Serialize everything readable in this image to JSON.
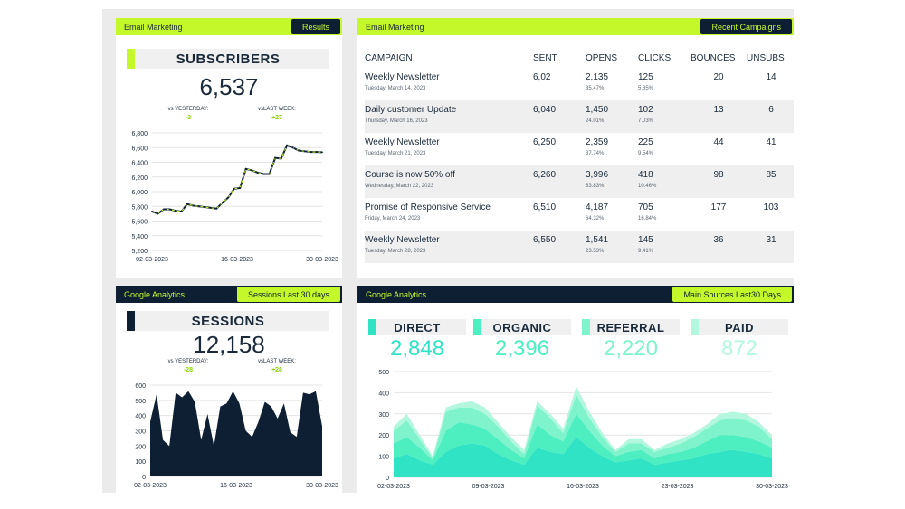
{
  "colors": {
    "accent": "#c5f82a",
    "dark": "#0e1f33",
    "teal1": "#2fe3c4",
    "teal2": "#4deec0",
    "teal3": "#7ff4cc",
    "teal4": "#b4f7df"
  },
  "subscribers": {
    "header_left": "Email Marketing",
    "header_tag": "Results",
    "title": "SUBSCRIBERS",
    "value": "6,537",
    "cmp_yesterday_label": "vs YESTERDAY:",
    "cmp_yesterday_value": "-3",
    "cmp_lastweek_label": "vsLAST WEEK:",
    "cmp_lastweek_value": "+27",
    "chart": {
      "type": "line",
      "ylim": [
        5200,
        6800
      ],
      "yticks": [
        "6,800",
        "6,600",
        "6,400",
        "6,200",
        "6,000",
        "5,800",
        "5,600",
        "5,400",
        "5,200"
      ],
      "xticks": [
        "02-03-2023",
        "16-03-2023",
        "30-03-2023"
      ],
      "values": [
        5730,
        5700,
        5760,
        5760,
        5740,
        5730,
        5830,
        5810,
        5800,
        5790,
        5780,
        5770,
        5850,
        5920,
        6040,
        6050,
        6310,
        6290,
        6260,
        6240,
        6240,
        6460,
        6450,
        6630,
        6600,
        6560,
        6550,
        6540,
        6540,
        6537
      ]
    }
  },
  "campaigns": {
    "header_left": "Email Marketing",
    "header_tag": "Recent Campaigns",
    "columns": [
      "CAMPAIGN",
      "SENT",
      "OPENS",
      "CLICKS",
      "BOUNCES",
      "UNSUBS"
    ],
    "rows": [
      {
        "name": "Weekly Newsletter",
        "date": "Tuesday, March 14, 2023",
        "sent": "6,02",
        "opens": "2,135",
        "opens_pct": "35.47%",
        "clicks": "125",
        "clicks_pct": "5.85%",
        "bounces": "20",
        "unsubs": "14"
      },
      {
        "name": "Daily customer Update",
        "date": "Thursday, March 16, 2023",
        "sent": "6,040",
        "opens": "1,450",
        "opens_pct": "24.01%",
        "clicks": "102",
        "clicks_pct": "7.03%",
        "bounces": "13",
        "unsubs": "6"
      },
      {
        "name": "Weekly Newsletter",
        "date": "Tuesday, March 21, 2023",
        "sent": "6,250",
        "opens": "2,359",
        "opens_pct": "37.74%",
        "clicks": "225",
        "clicks_pct": "9.54%",
        "bounces": "44",
        "unsubs": "41"
      },
      {
        "name": "Course is now 50% off",
        "date": "Wednesday, March 22, 2023",
        "sent": "6,260",
        "opens": "3,996",
        "opens_pct": "63.83%",
        "clicks": "418",
        "clicks_pct": "10.46%",
        "bounces": "98",
        "unsubs": "85"
      },
      {
        "name": "Promise of Responsive Service",
        "date": "Friday, March 24, 2023",
        "sent": "6,510",
        "opens": "4,187",
        "opens_pct": "64.32%",
        "clicks": "705",
        "clicks_pct": "16.84%",
        "bounces": "177",
        "unsubs": "103"
      },
      {
        "name": "Weekly Newsletter",
        "date": "Tuesday, March 28, 2023",
        "sent": "6,550",
        "opens": "1,541",
        "opens_pct": "23.53%",
        "clicks": "145",
        "clicks_pct": "9.41%",
        "bounces": "36",
        "unsubs": "31"
      }
    ]
  },
  "sessions": {
    "header_left": "Google Analytics",
    "header_tag": "Sessions Last 30 days",
    "title": "SESSIONS",
    "value": "12,158",
    "cmp_yesterday_label": "vs YESTERDAY:",
    "cmp_yesterday_value": "-28",
    "cmp_lastweek_label": "vsLAST WEEK:",
    "cmp_lastweek_value": "+28",
    "chart": {
      "type": "area",
      "ylim": [
        0,
        600
      ],
      "yticks": [
        "600",
        "500",
        "400",
        "300",
        "200",
        "100",
        "0"
      ],
      "xticks": [
        "02-03-2023",
        "16-03-2023",
        "30-03-2023"
      ],
      "values": [
        360,
        540,
        240,
        200,
        550,
        520,
        560,
        490,
        240,
        410,
        200,
        460,
        480,
        560,
        480,
        300,
        260,
        360,
        490,
        460,
        380,
        480,
        290,
        260,
        550,
        540,
        560,
        330
      ]
    }
  },
  "sources": {
    "header_left": "Google Analytics",
    "header_tag": "Main Sources Last30 Days",
    "items": [
      {
        "label": "DIRECT",
        "value": "2,848"
      },
      {
        "label": "ORGANIC",
        "value": "2,396"
      },
      {
        "label": "REFERRAL",
        "value": "2,220"
      },
      {
        "label": "PAID",
        "value": "872"
      }
    ],
    "chart": {
      "type": "area",
      "ylim": [
        0,
        500
      ],
      "yticks": [
        "500",
        "400",
        "300",
        "200",
        "100",
        "0"
      ],
      "xticks": [
        "02-03-2023",
        "09-03-2023",
        "16-03-2023",
        "23-03-2023",
        "30-03-2023"
      ],
      "series": [
        {
          "name": "DIRECT",
          "values": [
            90,
            110,
            80,
            60,
            120,
            150,
            160,
            150,
            110,
            80,
            60,
            140,
            120,
            110,
            190,
            140,
            100,
            70,
            80,
            90,
            60,
            70,
            80,
            90,
            110,
            120,
            130,
            120,
            110,
            90
          ]
        },
        {
          "name": "ORGANIC",
          "values": [
            70,
            80,
            60,
            20,
            100,
            110,
            90,
            80,
            70,
            50,
            30,
            110,
            80,
            60,
            110,
            80,
            50,
            30,
            40,
            40,
            30,
            40,
            40,
            50,
            60,
            80,
            70,
            70,
            60,
            50
          ]
        },
        {
          "name": "REFERRAL",
          "values": [
            60,
            80,
            40,
            10,
            90,
            70,
            80,
            70,
            60,
            40,
            20,
            90,
            80,
            40,
            90,
            60,
            40,
            20,
            40,
            30,
            30,
            30,
            40,
            50,
            60,
            70,
            80,
            80,
            70,
            40
          ]
        },
        {
          "name": "PAID",
          "values": [
            20,
            30,
            20,
            10,
            20,
            20,
            30,
            30,
            20,
            20,
            20,
            20,
            20,
            20,
            40,
            30,
            20,
            10,
            20,
            20,
            10,
            20,
            20,
            20,
            20,
            30,
            30,
            30,
            20,
            20
          ]
        }
      ]
    }
  }
}
